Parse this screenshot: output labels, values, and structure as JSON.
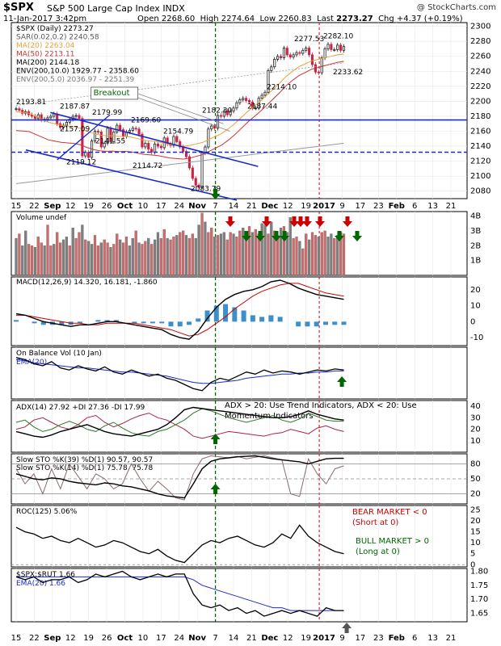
{
  "header": {
    "symbol": "$SPX",
    "name": "S&P 500 Large Cap Index",
    "exchange": "INDX",
    "source": "@ StockCharts.com",
    "datetime": "11-Jan-2017 3:42pm",
    "quote": {
      "open": "2268.60",
      "high": "2274.64",
      "low": "2260.83",
      "last": "2273.27",
      "chg": "+4.37 (+0.19%)"
    }
  },
  "colors": {
    "up": "#222222",
    "down": "#cc2244",
    "sma20": "#e8a33c",
    "sma50": "#cc3333",
    "sma200": "#999999",
    "trend": "#1a2cc8",
    "sig_green": "#006600",
    "sig_red": "#cc0000",
    "ema": "#1a2cc8",
    "hist": "#3c8fc8",
    "vol_up": "#7f7f7f",
    "vol_dn": "#d2696b"
  },
  "x_axis": {
    "labels": [
      "15",
      "22",
      "Sep",
      "12",
      "19",
      "26",
      "Oct",
      "10",
      "17",
      "24",
      "Nov",
      "7",
      "14",
      "21",
      "Dec",
      "12",
      "19",
      "2017",
      "9",
      "17",
      "23",
      "Feb",
      "6",
      "13",
      "21"
    ],
    "bold": [
      "Sep",
      "Oct",
      "Nov",
      "Dec",
      "2017",
      "Feb"
    ]
  },
  "vertical_markers": [
    {
      "label": "Nov 8",
      "style": "dashed-green"
    },
    {
      "label": "Jan 2017 first week",
      "style": "dashed-red"
    }
  ],
  "price_panel": {
    "legend": [
      "$SPX (Daily) 2273.27",
      "SAR(0.02,0.2) 2240.58",
      "MA(20) 2263.04",
      "MA(50) 2213.11",
      "MA(200) 2144.18",
      "ENV(200,10.0) 1929.77 - 2358.60",
      "ENV(200,5.0) 2036.97 - 2251.39"
    ],
    "y_ticks": [
      "2300",
      "2280",
      "2260",
      "2240",
      "2220",
      "2200",
      "2180",
      "2160",
      "2140",
      "2120",
      "2100",
      "2080"
    ],
    "annotations": [
      "2193.81",
      "2187.87",
      "2179.99",
      "2169.60",
      "2157.09",
      "2154.79",
      "2141.55",
      "2119.12",
      "2114.72",
      "2083.79",
      "2182.30",
      "2187.44",
      "2214.10",
      "2277.53",
      "2282.10",
      "2233.62"
    ],
    "breakout_label": "Breakout"
  },
  "volume_panel": {
    "legend": "Volume undef",
    "y_ticks": [
      "4B",
      "3B",
      "2B",
      "1B"
    ]
  },
  "macd_panel": {
    "legend": "MACD(12,26,9) 14.320, 16.181, -1.860",
    "y_ticks": [
      "20",
      "10",
      "0",
      "-10"
    ]
  },
  "obv_panel": {
    "legend": "On Balance Vol (10 Jan)",
    "legend2": "EMA(20)"
  },
  "adx_panel": {
    "legend": "ADX(14) 27.92 +DI 27.36 -DI 17.99",
    "note1": "ADX > 20: Use Trend Indicators, ADX < 20: Use",
    "note2": "Momentum Indicators",
    "y_ticks": [
      "40",
      "30",
      "20",
      "10"
    ]
  },
  "sto_panel": {
    "legend1": "Slow STO %K(39) %D(1) 90.57, 90.57",
    "legend2": "Slow STO %K(14) %D(1) 75.78, 75.78",
    "y_ticks": [
      "80",
      "50",
      "20"
    ]
  },
  "roc_panel": {
    "legend": "ROC(125) 5.06%",
    "bear1": "BEAR MARKET < 0",
    "bear2": "(Short at 0)",
    "bull1": "BULL MARKET > 0",
    "bull2": "(Long at 0)",
    "y_ticks": [
      "25",
      "20",
      "15",
      "10",
      "5",
      "0"
    ]
  },
  "ratio_panel": {
    "legend": "$SPX:$RUT 1.66",
    "legend2": "EMA(20) 1.66",
    "y_ticks": [
      "1.80",
      "1.75",
      "1.70",
      "1.65"
    ]
  },
  "chart_data": [
    {
      "type": "candlestick",
      "title": "$SPX (Daily) 2273.27",
      "ylim": [
        2070,
        2305
      ],
      "series": [
        {
          "name": "$SPX",
          "values": [
            2190,
            2188,
            2184,
            2186,
            2182,
            2180,
            2177,
            2182,
            2175,
            2176,
            2178,
            2180,
            2183,
            2170,
            2165,
            2168,
            2172,
            2176,
            2180,
            2181,
            2177,
            2127,
            2132,
            2125,
            2147,
            2160,
            2159,
            2139,
            2144,
            2164,
            2146,
            2159,
            2168,
            2162,
            2153,
            2159,
            2161,
            2164,
            2163,
            2156,
            2139,
            2144,
            2136,
            2132,
            2143,
            2140,
            2138,
            2151,
            2143,
            2141,
            2153,
            2146,
            2139,
            2133,
            2126,
            2111,
            2097,
            2088,
            2085,
            2131,
            2139,
            2163,
            2167,
            2164,
            2181,
            2180,
            2187,
            2182,
            2187,
            2191,
            2198,
            2202,
            2204,
            2201,
            2199,
            2191,
            2191,
            2204,
            2208,
            2212,
            2241,
            2246,
            2256,
            2260,
            2258,
            2271,
            2262,
            2259,
            2262,
            2265,
            2264,
            2268,
            2271,
            2262,
            2249,
            2239,
            2238,
            2258,
            2270,
            2276,
            2269,
            2269,
            2275,
            2268,
            2273
          ]
        },
        {
          "name": "MA(20)",
          "values": [
            2186,
            2185,
            2184,
            2180,
            2176,
            2172,
            2170,
            2168,
            2167,
            2166,
            2164,
            2160,
            2157,
            2155,
            2154,
            2154,
            2153,
            2153,
            2152,
            2150,
            2148,
            2147,
            2146,
            2144,
            2142,
            2141,
            2140,
            2141,
            2143,
            2145,
            2149,
            2153,
            2157,
            2163,
            2170,
            2178,
            2186,
            2193,
            2200,
            2208,
            2216,
            2224,
            2233,
            2240,
            2246,
            2250,
            2254,
            2256,
            2258,
            2260,
            2262,
            2263
          ]
        },
        {
          "name": "MA(200)",
          "values": [
            2090,
            2092,
            2094,
            2096,
            2098,
            2100,
            2102,
            2104,
            2106,
            2108,
            2110,
            2112,
            2114,
            2116,
            2118,
            2120,
            2122,
            2124,
            2126,
            2128,
            2130,
            2132,
            2134,
            2136,
            2138,
            2140,
            2142,
            2144
          ]
        }
      ]
    },
    {
      "type": "bar",
      "title": "Volume undef",
      "ylim": [
        0,
        4.3
      ],
      "series": [
        {
          "name": "Volume",
          "values": [
            2.5,
            2.8,
            2.0,
            3.0,
            2.1,
            2.0,
            1.9,
            2.6,
            2.2,
            2.0,
            3.4,
            2.0,
            2.1,
            2.9,
            2.2,
            2.4,
            2.6,
            2.0,
            3.2,
            2.5,
            2.9,
            3.4,
            2.4,
            2.3,
            2.1,
            2.7,
            2.0,
            2.2,
            2.4,
            2.2,
            1.9,
            2.1,
            2.8,
            2.4,
            2.2,
            2.6,
            2.0,
            2.5,
            3.0,
            2.2,
            2.1,
            2.3,
            2.5,
            2.1,
            2.4,
            2.9,
            2.5,
            3.1,
            2.5,
            2.4,
            2.6,
            2.7,
            2.9,
            3.0,
            2.7,
            2.5,
            2.8,
            2.5,
            3.4,
            4.2,
            3.6,
            2.9,
            3.2,
            2.6,
            2.7,
            2.8,
            2.9,
            2.4,
            2.9,
            2.8,
            2.6,
            3.0,
            3.2,
            2.8,
            3.3,
            2.9,
            3.1,
            2.8,
            3.5,
            3.4,
            2.8,
            3.6,
            3.0,
            2.7,
            3.2,
            3.3,
            2.9,
            3.9,
            2.5,
            2.6,
            2.3,
            1.8,
            2.8,
            2.4,
            2.9,
            2.7,
            2.6,
            2.9,
            3.0,
            2.6,
            2.8,
            2.5,
            2.7,
            2.9,
            2.8
          ]
        }
      ]
    },
    {
      "type": "line",
      "title": "MACD(12,26,9) 14.320, 16.181, -1.860",
      "ylim": [
        -15,
        28
      ],
      "series": [
        {
          "name": "MACD",
          "values": [
            5,
            4,
            2,
            0,
            -1,
            -2,
            -3,
            -2,
            -2,
            -1,
            0,
            0,
            -1,
            -2,
            -3,
            -4,
            -5,
            -8,
            -10,
            -11,
            -6,
            2,
            9,
            14,
            17,
            19,
            20,
            22,
            25,
            26,
            24,
            21,
            19,
            17,
            16,
            15,
            14
          ]
        },
        {
          "name": "Signal",
          "values": [
            4,
            4,
            3,
            2,
            1,
            0,
            -1,
            -1,
            -2,
            -2,
            -1,
            -1,
            -1,
            -1,
            -2,
            -3,
            -4,
            -5,
            -7,
            -9,
            -8,
            -5,
            -1,
            3,
            8,
            12,
            16,
            19,
            21,
            23,
            24,
            24,
            22,
            20,
            18,
            17,
            16
          ]
        },
        {
          "name": "Histogram",
          "values": [
            1,
            0,
            -1,
            -2,
            -2,
            -2,
            -2,
            -1,
            0,
            1,
            1,
            1,
            0,
            -1,
            -1,
            -1,
            -1,
            -3,
            -3,
            -2,
            2,
            7,
            10,
            11,
            9,
            7,
            4,
            3,
            4,
            3,
            0,
            -3,
            -3,
            -3,
            -2,
            -2,
            -2
          ]
        }
      ]
    },
    {
      "type": "line",
      "title": "On Balance Vol (10 Jan)",
      "series": [
        {
          "name": "OBV",
          "values": [
            60,
            58,
            54,
            52,
            56,
            50,
            48,
            52,
            49,
            47,
            51,
            46,
            44,
            48,
            45,
            42,
            44,
            40,
            38,
            34,
            30,
            28,
            36,
            40,
            38,
            42,
            46,
            44,
            48,
            45,
            47,
            46,
            44,
            46,
            48,
            47,
            49,
            48
          ]
        },
        {
          "name": "EMA(20)",
          "values": [
            58,
            57,
            55,
            54,
            53,
            52,
            51,
            50,
            50,
            49,
            48,
            47,
            46,
            46,
            45,
            44,
            43,
            42,
            40,
            38,
            36,
            35,
            35,
            36,
            37,
            38,
            40,
            41,
            42,
            43,
            44,
            44,
            45,
            45,
            46,
            46,
            47,
            47
          ]
        }
      ]
    },
    {
      "type": "line",
      "title": "ADX(14) 27.92 +DI 27.36 -DI 17.99",
      "ylim": [
        0,
        45
      ],
      "series": [
        {
          "name": "ADX",
          "values": [
            18,
            16,
            14,
            13,
            15,
            18,
            20,
            22,
            24,
            21,
            18,
            16,
            15,
            14,
            16,
            18,
            20,
            24,
            30,
            37,
            39,
            38,
            37,
            36,
            35,
            34,
            33,
            32,
            31,
            30,
            30,
            31,
            33,
            36,
            33,
            31,
            29,
            28
          ]
        },
        {
          "name": "+DI",
          "values": [
            26,
            28,
            22,
            18,
            20,
            24,
            27,
            24,
            20,
            18,
            23,
            26,
            21,
            17,
            15,
            14,
            18,
            20,
            24,
            28,
            34,
            38,
            36,
            33,
            30,
            28,
            26,
            28,
            30,
            32,
            28,
            26,
            29,
            34,
            31,
            28,
            27,
            27
          ]
        },
        {
          "name": "-DI",
          "values": [
            20,
            22,
            28,
            30,
            26,
            22,
            20,
            24,
            30,
            32,
            26,
            22,
            25,
            29,
            32,
            34,
            30,
            28,
            24,
            20,
            14,
            12,
            14,
            16,
            18,
            17,
            16,
            15,
            14,
            16,
            17,
            20,
            18,
            16,
            21,
            23,
            20,
            18
          ]
        }
      ]
    },
    {
      "type": "line",
      "title": "Slow STO",
      "ylim": [
        0,
        100
      ],
      "series": [
        {
          "name": "%K(39)",
          "values": [
            60,
            55,
            50,
            48,
            52,
            50,
            45,
            42,
            40,
            38,
            42,
            40,
            36,
            34,
            30,
            26,
            20,
            16,
            14,
            12,
            40,
            70,
            85,
            90,
            92,
            94,
            95,
            96,
            93,
            90,
            88,
            86,
            84,
            80,
            85,
            90,
            91,
            91
          ]
        },
        {
          "name": "%K(14)",
          "values": [
            70,
            40,
            60,
            20,
            70,
            30,
            80,
            55,
            30,
            60,
            50,
            30,
            40,
            80,
            50,
            25,
            45,
            30,
            12,
            8,
            60,
            90,
            96,
            94,
            92,
            95,
            90,
            93,
            96,
            92,
            88,
            20,
            15,
            90,
            60,
            40,
            70,
            76
          ]
        }
      ]
    },
    {
      "type": "line",
      "title": "ROC(125) 5.06%",
      "ylim": [
        -1,
        27
      ],
      "series": [
        {
          "name": "ROC(125)",
          "values": [
            17,
            15,
            14,
            12,
            13,
            11,
            10,
            12,
            10,
            8,
            9,
            11,
            10,
            8,
            6,
            5,
            7,
            4,
            2,
            1,
            5,
            9,
            11,
            10,
            12,
            13,
            11,
            9,
            8,
            10,
            14,
            12,
            18,
            13,
            10,
            8,
            6,
            5
          ]
        }
      ]
    },
    {
      "type": "line",
      "title": "$SPX:$RUT 1.66",
      "ylim": [
        1.62,
        1.81
      ],
      "series": [
        {
          "name": "$SPX:$RUT",
          "values": [
            1.78,
            1.77,
            1.78,
            1.76,
            1.77,
            1.77,
            1.78,
            1.76,
            1.77,
            1.79,
            1.78,
            1.79,
            1.8,
            1.78,
            1.77,
            1.78,
            1.79,
            1.78,
            1.79,
            1.79,
            1.72,
            1.68,
            1.67,
            1.68,
            1.66,
            1.67,
            1.65,
            1.66,
            1.64,
            1.65,
            1.66,
            1.65,
            1.66,
            1.65,
            1.64,
            1.67,
            1.66,
            1.66
          ]
        },
        {
          "name": "EMA(20)",
          "values": [
            1.78,
            1.78,
            1.78,
            1.78,
            1.78,
            1.78,
            1.78,
            1.78,
            1.78,
            1.78,
            1.78,
            1.78,
            1.78,
            1.78,
            1.78,
            1.78,
            1.78,
            1.78,
            1.78,
            1.78,
            1.77,
            1.75,
            1.74,
            1.73,
            1.72,
            1.71,
            1.7,
            1.69,
            1.68,
            1.67,
            1.67,
            1.66,
            1.66,
            1.66,
            1.66,
            1.66,
            1.66,
            1.66
          ]
        }
      ]
    }
  ]
}
